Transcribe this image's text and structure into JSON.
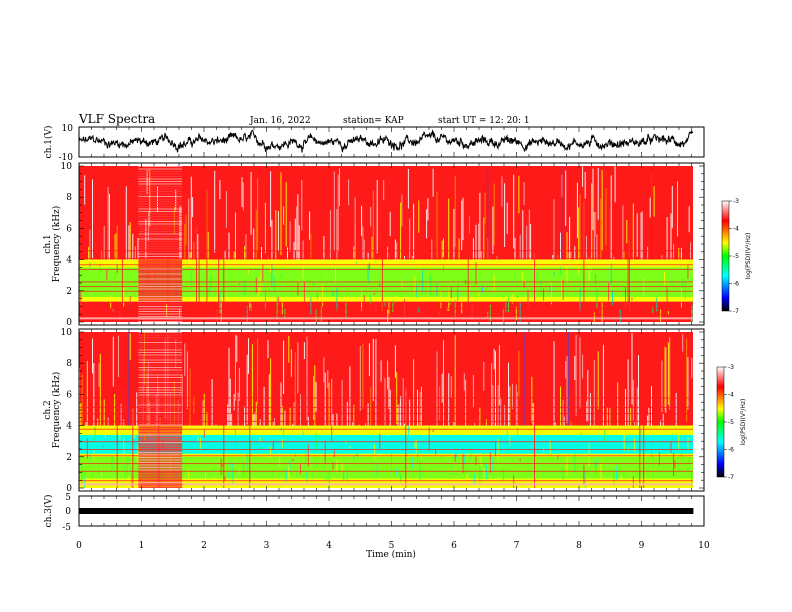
{
  "header": {
    "title": "VLF Spectra",
    "date": "Jan. 16, 2022",
    "station": "station= KAP",
    "start": "start  UT =   12: 20: 1"
  },
  "chart_data": [
    {
      "type": "line",
      "panel": "ch1-waveform",
      "ylabel": "ch.1(V)",
      "ylim": [
        -10,
        10
      ],
      "yticks": [
        "10",
        "-10"
      ],
      "description_values": "noisy waveform oscillating roughly between -7 and +7 V"
    },
    {
      "type": "heatmap",
      "panel": "ch1-spectrogram",
      "ylabel": "ch.1\nFrequency  (kHz)",
      "ylim": [
        0,
        10
      ],
      "yticks": [
        "0",
        "2",
        "4",
        "6",
        "8",
        "10"
      ],
      "colorbar": {
        "label": "log(PSD)(V²/Hz)",
        "ticks": [
          "-3",
          "-4",
          "-5",
          "-6",
          "-7"
        ],
        "range": [
          -7,
          -3
        ],
        "colors": [
          "#000000",
          "#0000ff",
          "#00ffff",
          "#00ff00",
          "#ffff00",
          "#ff0000",
          "#ffffff"
        ]
      }
    },
    {
      "type": "heatmap",
      "panel": "ch2-spectrogram",
      "ylabel": "ch.2\nFrequency  (kHz)",
      "ylim": [
        0,
        10
      ],
      "yticks": [
        "0",
        "2",
        "4",
        "6",
        "8",
        "10"
      ],
      "colorbar": {
        "label": "log(PSD)(V²/Hz)",
        "ticks": [
          "-3",
          "-4",
          "-5",
          "-6",
          "-7"
        ],
        "range": [
          -7,
          -3
        ]
      }
    },
    {
      "type": "line",
      "panel": "ch3-waveform",
      "ylabel": "ch.3(V)",
      "ylim": [
        -5,
        5
      ],
      "yticks": [
        "5",
        "0",
        "-5"
      ],
      "values_approx": -0.5
    }
  ],
  "xaxis": {
    "label": "Time  (min)",
    "range": [
      0,
      10
    ],
    "ticks": [
      "0",
      "1",
      "2",
      "3",
      "4",
      "5",
      "6",
      "7",
      "8",
      "9",
      "10"
    ],
    "data_end": 9.83
  }
}
